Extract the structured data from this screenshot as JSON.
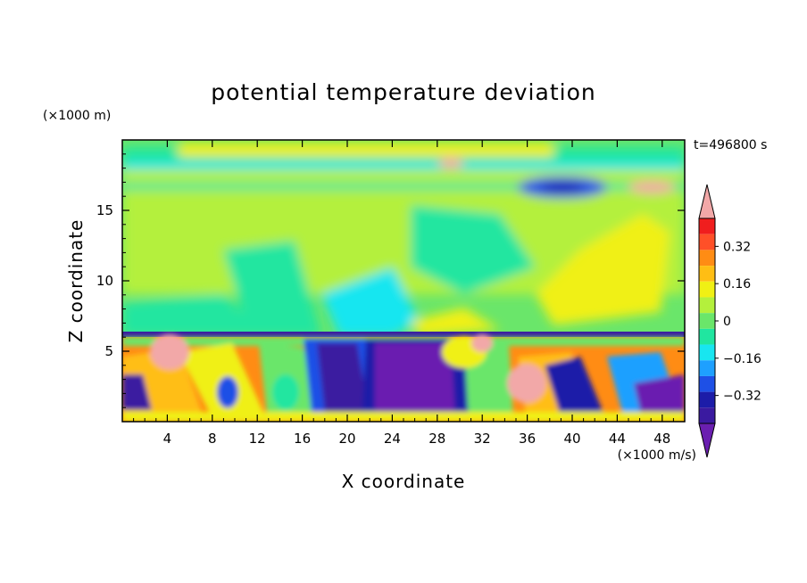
{
  "chart_data": {
    "type": "heatmap",
    "title": "potential temperature deviation",
    "xlabel": "X coordinate",
    "ylabel": "Z coordinate",
    "x_unit": "(×1000 m/s)",
    "y_unit": "(×1000 m)",
    "time_label": "t=496800 s",
    "xlim": [
      0,
      50
    ],
    "ylim": [
      0,
      20
    ],
    "x_ticks": [
      4,
      8,
      12,
      16,
      20,
      24,
      28,
      32,
      36,
      40,
      44,
      48
    ],
    "y_ticks": [
      5,
      10,
      15
    ],
    "colorbar": {
      "levels": [
        -0.44,
        -0.4,
        -0.36,
        -0.32,
        -0.28,
        -0.24,
        -0.2,
        -0.16,
        -0.12,
        -0.08,
        -0.04,
        0,
        0.04,
        0.08,
        0.12,
        0.16,
        0.2,
        0.24,
        0.28,
        0.32,
        0.36,
        0.4,
        0.44
      ],
      "tick_labels": [
        "0.32",
        "0.16",
        "0",
        "−0.16",
        "−0.32"
      ],
      "tick_values": [
        0.32,
        0.16,
        0,
        -0.16,
        -0.32
      ],
      "colors": [
        "#6a1fb0",
        "#3a1aa0",
        "#1c1ca8",
        "#1e50e6",
        "#1ea0ff",
        "#18e6f0",
        "#20e6a0",
        "#6ae66a",
        "#b4f03c",
        "#f0f014",
        "#ffbe14",
        "#ff8c14",
        "#ff5028",
        "#f01e1e",
        "#f2a8a8"
      ]
    },
    "regions": [
      {
        "desc": "upper field",
        "x": [
          0,
          50
        ],
        "z": [
          6.5,
          20
        ],
        "value": 0.0
      },
      {
        "desc": "tropopause band",
        "x": [
          0,
          50
        ],
        "z": [
          17.5,
          18.5
        ],
        "value": 0.12
      },
      {
        "desc": "upper cold pool",
        "x": [
          35,
          43
        ],
        "z": [
          16,
          18
        ],
        "value": -0.3
      },
      {
        "desc": "warm plume",
        "x": [
          37,
          48
        ],
        "z": [
          8,
          14
        ],
        "value": 0.16
      },
      {
        "desc": "cold column",
        "x": [
          18,
          30
        ],
        "z": [
          0,
          6.3
        ],
        "value": -0.4
      },
      {
        "desc": "warm cell",
        "x": [
          34,
          38
        ],
        "z": [
          1,
          4
        ],
        "value": 0.4
      },
      {
        "desc": "warm cell",
        "x": [
          3,
          6
        ],
        "z": [
          3,
          6
        ],
        "value": 0.4
      }
    ]
  }
}
